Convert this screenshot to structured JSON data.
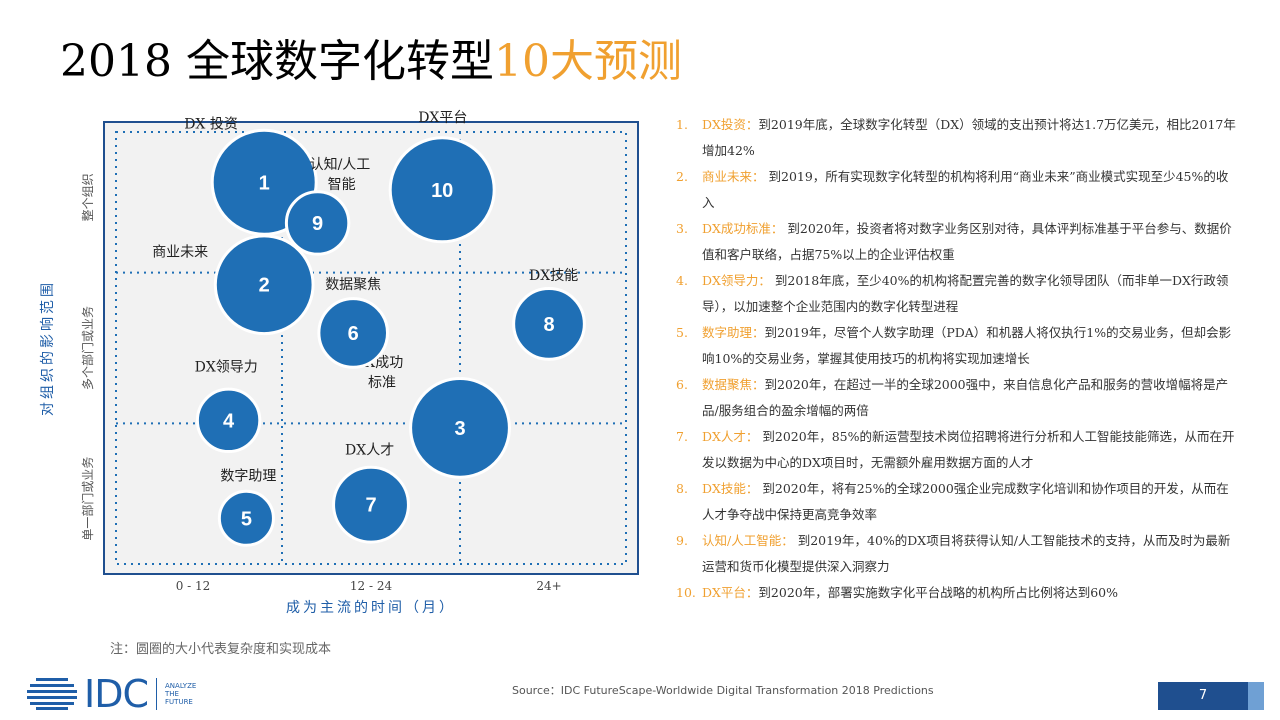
{
  "title": {
    "main": "2018 全球数字化转型",
    "highlight": "10大预测"
  },
  "chart_data": {
    "type": "scatter",
    "xlabel": "成为主流的时间（月）",
    "ylabel": "对组织的影响范围",
    "x_categories": [
      "0 - 12",
      "12 - 24",
      "24+"
    ],
    "y_categories": [
      "单一部门或业务",
      "多个部门或业务",
      "整个组织"
    ],
    "bubbles": [
      {
        "number": "1",
        "label": "DX 投资",
        "x": 0.9,
        "y": 2.6,
        "size": 1.0
      },
      {
        "number": "2",
        "label": "商业未来",
        "x": 0.9,
        "y": 1.92,
        "size": 0.94
      },
      {
        "number": "3",
        "label": "DX成功标准",
        "x": 2.0,
        "y": 0.97,
        "size": 0.95
      },
      {
        "number": "4",
        "label": "DX领导力",
        "x": 0.7,
        "y": 1.02,
        "size": 0.6
      },
      {
        "number": "5",
        "label": "数字助理",
        "x": 0.8,
        "y": 0.37,
        "size": 0.52
      },
      {
        "number": "6",
        "label": "数据聚焦",
        "x": 1.4,
        "y": 1.6,
        "size": 0.66
      },
      {
        "number": "7",
        "label": "DX人才",
        "x": 1.5,
        "y": 0.46,
        "size": 0.72
      },
      {
        "number": "8",
        "label": "DX技能",
        "x": 2.5,
        "y": 1.66,
        "size": 0.68
      },
      {
        "number": "9",
        "label": "认知/人工智能",
        "x": 1.2,
        "y": 2.33,
        "size": 0.6
      },
      {
        "number": "10",
        "label": "DX平台",
        "x": 1.9,
        "y": 2.55,
        "size": 1.0
      }
    ],
    "bubble_color": "#1f6fb5"
  },
  "predictions": [
    {
      "num": "1.",
      "head": "DX投资：",
      "text": "到2019年底，全球数字化转型（DX）领域的支出预计将达1.7万亿美元，相比2017年增加42%"
    },
    {
      "num": "2.",
      "head": "商业未来：",
      "text": " 到2019，所有实现数字化转型的机构将利用“商业未来”商业模式实现至少45%的收入"
    },
    {
      "num": "3.",
      "head": "DX成功标准：",
      "text": " 到2020年，投资者将对数字业务区别对待，具体评判标准基于平台参与、数据价值和客户联络，占据75%以上的企业评估权重"
    },
    {
      "num": "4.",
      "head": "DX领导力：",
      "text": " 到2018年底，至少40%的机构将配置完善的数字化领导团队（而非单一DX行政领导），以加速整个企业范围内的数字化转型进程"
    },
    {
      "num": "5.",
      "head": "数字助理：",
      "text": "到2019年，尽管个人数字助理（PDA）和机器人将仅执行1%的交易业务，但却会影响10%的交易业务，掌握其使用技巧的机构将实现加速增长"
    },
    {
      "num": "6.",
      "head": "数据聚焦：",
      "text": "到2020年，在超过一半的全球2000强中，来自信息化产品和服务的营收增幅将是产品/服务组合的盈余增幅的两倍"
    },
    {
      "num": "7.",
      "head": "DX人才：",
      "text": " 到2020年，85%的新运营型技术岗位招聘将进行分析和人工智能技能筛选，从而在开发以数据为中心的DX项目时，无需额外雇用数据方面的人才"
    },
    {
      "num": "8.",
      "head": "DX技能：",
      "text": " 到2020年，将有25%的全球2000强企业完成数字化培训和协作项目的开发，从而在人才争夺战中保持更高竞争效率"
    },
    {
      "num": "9.",
      "head": "认知/人工智能：",
      "text": " 到2019年，40%的DX项目将获得认知/人工智能技术的支持，从而及时为最新运营和货币化模型提供深入洞察力"
    },
    {
      "num": "10.",
      "head": "DX平台：",
      "text": "到2020年，部署实施数字化平台战略的机构所占比例将达到60%"
    }
  ],
  "note": "注：圆圈的大小代表复杂度和实现成本",
  "logo": {
    "mark": "IDC",
    "tagline": [
      "ANALYZE",
      "THE",
      "FUTURE"
    ]
  },
  "source": "Source：IDC FutureScape-Worldwide Digital Transformation 2018 Predictions",
  "page_number": "7"
}
